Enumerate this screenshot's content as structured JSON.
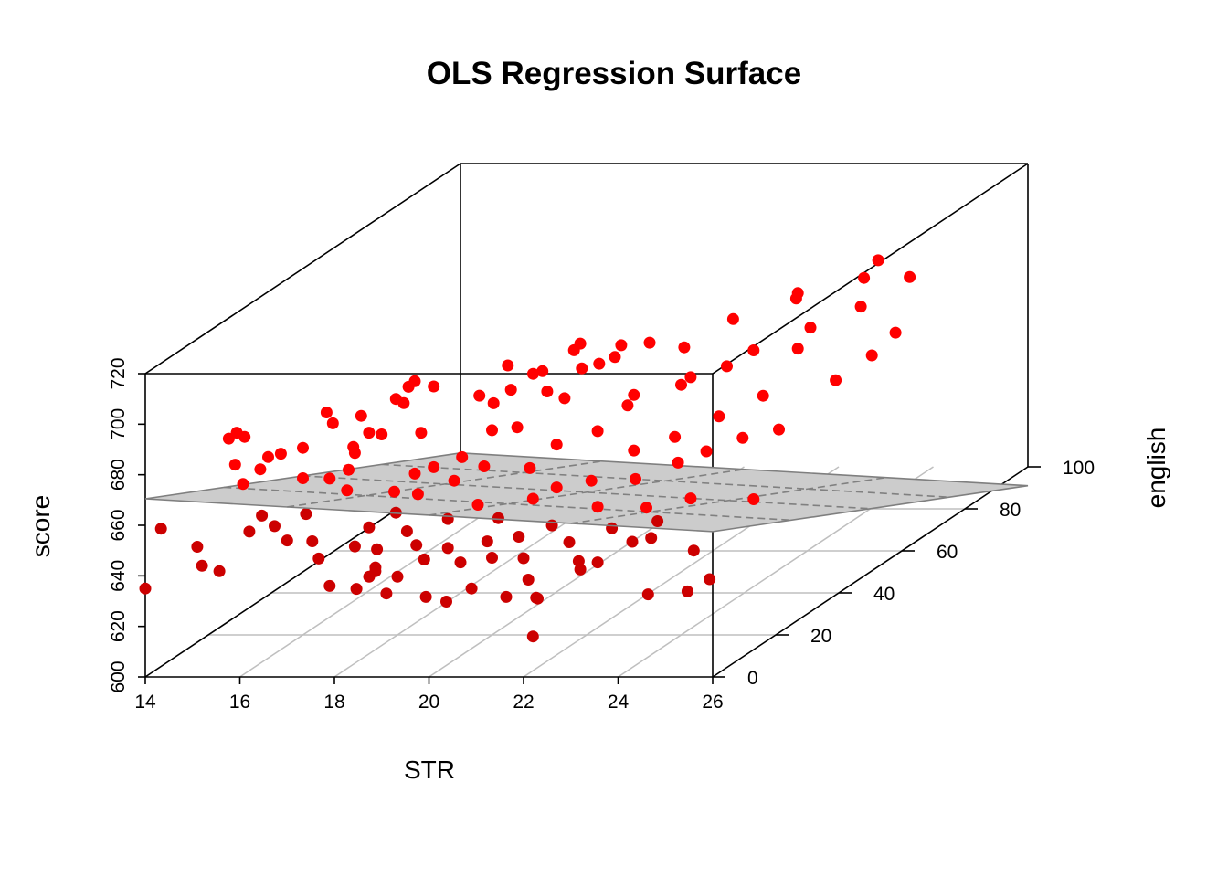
{
  "chart_data": {
    "type": "scatter",
    "title": "OLS Regression Surface",
    "xlabel": "STR",
    "ylabel": "english",
    "zlabel": "score",
    "xlim": [
      14,
      26
    ],
    "ylim": [
      0,
      100
    ],
    "zlim": [
      600,
      720
    ],
    "xticks": [
      "14",
      "16",
      "18",
      "20",
      "22",
      "24",
      "26"
    ],
    "yticks": [
      "0",
      "20",
      "40",
      "60",
      "80",
      "100"
    ],
    "zticks": [
      "600",
      "620",
      "640",
      "660",
      "680",
      "700",
      "720"
    ],
    "plane": {
      "intercept": 685.6,
      "coef_STR": -1.08,
      "coef_english": -0.65
    },
    "point_color": "#ff0000",
    "point_color_below": "#cc0000",
    "plane_color": "#cccccc",
    "points": [
      [
        14.0,
        0,
        635
      ],
      [
        14.2,
        2,
        657
      ],
      [
        14.9,
        3,
        649
      ],
      [
        15.2,
        0,
        644
      ],
      [
        15.5,
        1,
        641
      ],
      [
        15.1,
        10,
        686
      ],
      [
        15.4,
        8,
        690
      ],
      [
        15.7,
        6,
        690
      ],
      [
        15.8,
        4,
        673
      ],
      [
        16.1,
        5,
        678
      ],
      [
        16.0,
        3,
        655
      ],
      [
        16.4,
        1,
        663
      ],
      [
        16.2,
        6,
        682
      ],
      [
        16.6,
        2,
        658
      ],
      [
        16.6,
        4,
        685
      ],
      [
        16.8,
        8,
        684
      ],
      [
        17.0,
        0,
        654
      ],
      [
        17.2,
        3,
        662
      ],
      [
        17.4,
        2,
        652
      ],
      [
        17.6,
        1,
        646
      ],
      [
        17.3,
        9,
        671
      ],
      [
        17.5,
        12,
        672
      ],
      [
        17.8,
        7,
        668
      ],
      [
        17.9,
        10,
        695
      ],
      [
        18.0,
        6,
        686
      ],
      [
        18.2,
        8,
        690
      ],
      [
        18.3,
        2,
        650
      ],
      [
        18.4,
        5,
        655
      ],
      [
        18.5,
        12,
        700
      ],
      [
        18.6,
        4,
        640
      ],
      [
        18.7,
        3,
        648
      ],
      [
        18.8,
        1,
        641
      ],
      [
        18.9,
        6,
        660
      ],
      [
        18.5,
        20,
        680
      ],
      [
        18.7,
        15,
        668
      ],
      [
        19.0,
        8,
        651
      ],
      [
        19.1,
        10,
        664
      ],
      [
        19.2,
        2,
        638
      ],
      [
        19.3,
        12,
        673
      ],
      [
        19.4,
        5,
        648
      ],
      [
        19.5,
        18,
        672
      ],
      [
        19.6,
        14,
        666
      ],
      [
        19.7,
        3,
        644
      ],
      [
        19.8,
        9,
        655
      ],
      [
        19.9,
        22,
        690
      ],
      [
        20.0,
        6,
        646
      ],
      [
        20.1,
        16,
        670
      ],
      [
        20.2,
        25,
        678
      ],
      [
        20.3,
        11,
        659
      ],
      [
        20.4,
        4,
        642
      ],
      [
        20.5,
        30,
        688
      ],
      [
        20.6,
        13,
        652
      ],
      [
        20.7,
        8,
        647
      ],
      [
        20.8,
        20,
        666
      ],
      [
        20.9,
        35,
        693
      ],
      [
        21.0,
        5,
        643
      ],
      [
        21.1,
        24,
        672
      ],
      [
        21.2,
        15,
        658
      ],
      [
        21.3,
        9,
        648
      ],
      [
        21.4,
        40,
        698
      ],
      [
        21.5,
        18,
        660
      ],
      [
        21.6,
        6,
        642
      ],
      [
        21.7,
        28,
        674
      ],
      [
        21.8,
        12,
        650
      ],
      [
        21.9,
        3,
        636
      ],
      [
        22.0,
        33,
        680
      ],
      [
        22.1,
        20,
        661
      ],
      [
        22.2,
        0,
        616
      ],
      [
        22.3,
        10,
        645
      ],
      [
        22.4,
        45,
        693
      ],
      [
        22.5,
        16,
        654
      ],
      [
        22.6,
        26,
        668
      ],
      [
        22.7,
        7,
        640
      ],
      [
        22.8,
        38,
        684
      ],
      [
        22.9,
        22,
        660
      ],
      [
        23.0,
        13,
        648
      ],
      [
        23.1,
        50,
        700
      ],
      [
        23.2,
        30,
        670
      ],
      [
        23.3,
        4,
        642
      ],
      [
        23.4,
        18,
        652
      ],
      [
        23.5,
        42,
        688
      ],
      [
        23.6,
        25,
        664
      ],
      [
        23.7,
        9,
        646
      ],
      [
        23.8,
        35,
        674
      ],
      [
        23.9,
        14,
        650
      ],
      [
        24.0,
        28,
        666
      ],
      [
        24.1,
        55,
        704
      ],
      [
        24.2,
        20,
        654
      ],
      [
        24.3,
        6,
        650
      ],
      [
        24.4,
        40,
        678
      ],
      [
        24.5,
        32,
        668
      ],
      [
        24.6,
        48,
        690
      ],
      [
        24.8,
        12,
        640
      ],
      [
        25.0,
        36,
        668
      ],
      [
        25.2,
        60,
        708
      ],
      [
        25.4,
        22,
        652
      ],
      [
        25.6,
        45,
        680
      ],
      [
        25.8,
        2,
        637
      ],
      [
        25.9,
        52,
        684
      ],
      [
        26.0,
        58,
        688
      ],
      [
        25.5,
        70,
        700
      ],
      [
        25.0,
        62,
        695
      ],
      [
        24.7,
        72,
        705
      ],
      [
        23.8,
        60,
        702
      ],
      [
        17.1,
        20,
        672
      ],
      [
        17.9,
        25,
        694
      ],
      [
        18.1,
        30,
        690
      ],
      [
        19.2,
        28,
        688
      ],
      [
        19.8,
        36,
        690
      ],
      [
        20.4,
        40,
        696
      ],
      [
        21.0,
        44,
        690
      ],
      [
        21.6,
        46,
        694
      ],
      [
        18.8,
        10,
        700
      ],
      [
        19.3,
        6,
        712
      ],
      [
        17.7,
        4,
        697
      ],
      [
        15.9,
        0,
        684
      ],
      [
        16.9,
        14,
        693
      ],
      [
        20.8,
        14,
        702
      ],
      [
        21.2,
        18,
        706
      ],
      [
        22.0,
        24,
        704
      ],
      [
        19.0,
        40,
        690
      ],
      [
        20.0,
        48,
        692
      ],
      [
        16.0,
        20,
        662
      ],
      [
        17.4,
        24,
        676
      ],
      [
        18.2,
        16,
        660
      ],
      [
        19.6,
        26,
        676
      ],
      [
        20.6,
        34,
        682
      ],
      [
        21.8,
        38,
        680
      ],
      [
        22.6,
        44,
        682
      ],
      [
        23.4,
        52,
        686
      ],
      [
        24.2,
        58,
        690
      ],
      [
        18.4,
        1,
        634
      ],
      [
        19.1,
        0,
        633
      ],
      [
        20.3,
        1,
        629
      ],
      [
        21.5,
        2,
        630
      ],
      [
        22.0,
        4,
        628
      ],
      [
        22.3,
        0,
        631
      ],
      [
        19.8,
        2,
        630
      ],
      [
        20.9,
        0,
        635
      ],
      [
        23.0,
        3,
        640
      ],
      [
        24.5,
        2,
        631
      ],
      [
        25.4,
        1,
        633
      ],
      [
        17.9,
        0,
        636
      ],
      [
        18.6,
        2,
        638
      ]
    ]
  }
}
